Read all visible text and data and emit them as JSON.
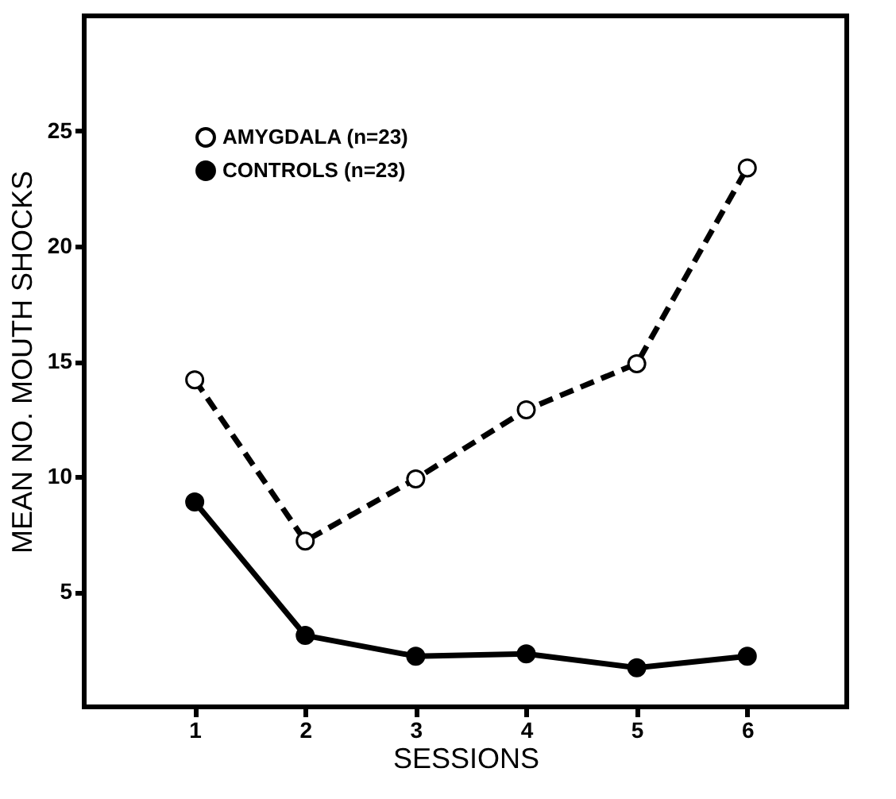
{
  "chart_data": {
    "type": "line",
    "xlabel": "SESSIONS",
    "ylabel": "MEAN NO. MOUTH SHOCKS",
    "x": [
      1,
      2,
      3,
      4,
      5,
      6
    ],
    "xlim": [
      0,
      6.9
    ],
    "xticks": [
      1,
      2,
      3,
      4,
      5,
      6
    ],
    "ylim": [
      0,
      30
    ],
    "yticks": [
      5,
      10,
      15,
      20,
      25
    ],
    "series": [
      {
        "name": "AMYGDALA (n=23)",
        "color": "#000000",
        "line_style": "dashed",
        "marker": "circle",
        "values": [
          14.2,
          7.2,
          9.9,
          12.9,
          14.9,
          23.4
        ]
      },
      {
        "name": "CONTROLS (n=23)",
        "color": "#000000",
        "line_style": "solid",
        "marker": "circle",
        "values": [
          8.9,
          3.1,
          2.2,
          2.3,
          1.7,
          2.2
        ]
      }
    ],
    "grid": false,
    "legend": "top left"
  }
}
